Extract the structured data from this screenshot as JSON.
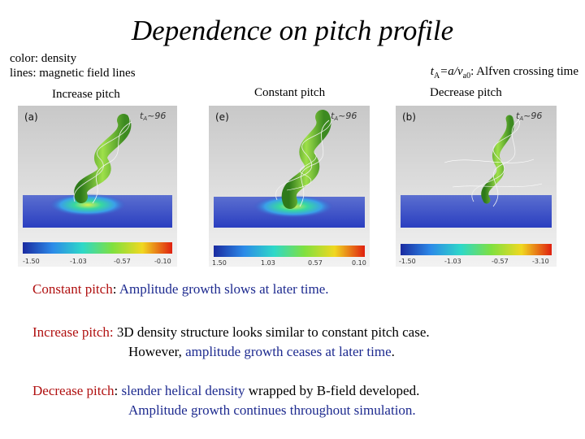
{
  "slide": {
    "title": "Dependence on pitch profile",
    "legend_color": "color: density",
    "legend_lines": "lines: magnetic field lines",
    "alfven_definition": {
      "expr_t": "t",
      "expr_sub_A": "A",
      "expr_eq": "=a/v",
      "expr_sub_a0": "a0",
      "desc": ": Alfven crossing time"
    }
  },
  "panels": [
    {
      "label": "Increase pitch",
      "tag": "(a)",
      "time_label": "t",
      "time_sub": "A",
      "time_value": "~96",
      "colorbar_ticks": [
        "-1.50",
        "-1.03",
        "-0.57",
        "-0.10"
      ]
    },
    {
      "label": "Constant pitch",
      "tag": "(e)",
      "time_label": "t",
      "time_sub": "A",
      "time_value": "~96",
      "colorbar_ticks": [
        "1.50",
        "1.03",
        "0.57",
        "0.10"
      ]
    },
    {
      "label": "Decrease pitch",
      "tag": "(b)",
      "time_label": "t",
      "time_sub": "A",
      "time_value": "~96",
      "colorbar_ticks": [
        "-1.50",
        "-1.03",
        "-0.57",
        "-3.10"
      ]
    }
  ],
  "notes": {
    "constant": {
      "head": "Constant pitch",
      "colon": ":",
      "body": " Amplitude growth slows at later time."
    },
    "increase": {
      "head": "Increase pitch:",
      "body1": " 3D density structure looks similar to constant pitch case.",
      "body2a": "However, ",
      "body2b": "amplitude growth ceases at later time",
      "body2c": "."
    },
    "decrease": {
      "head": "Decrease pitch",
      "colon": ":",
      "body1a": " slender helical density",
      "body1b": "  wrapped by B-field developed.",
      "body2": "Amplitude growth continues throughout simulation."
    }
  }
}
